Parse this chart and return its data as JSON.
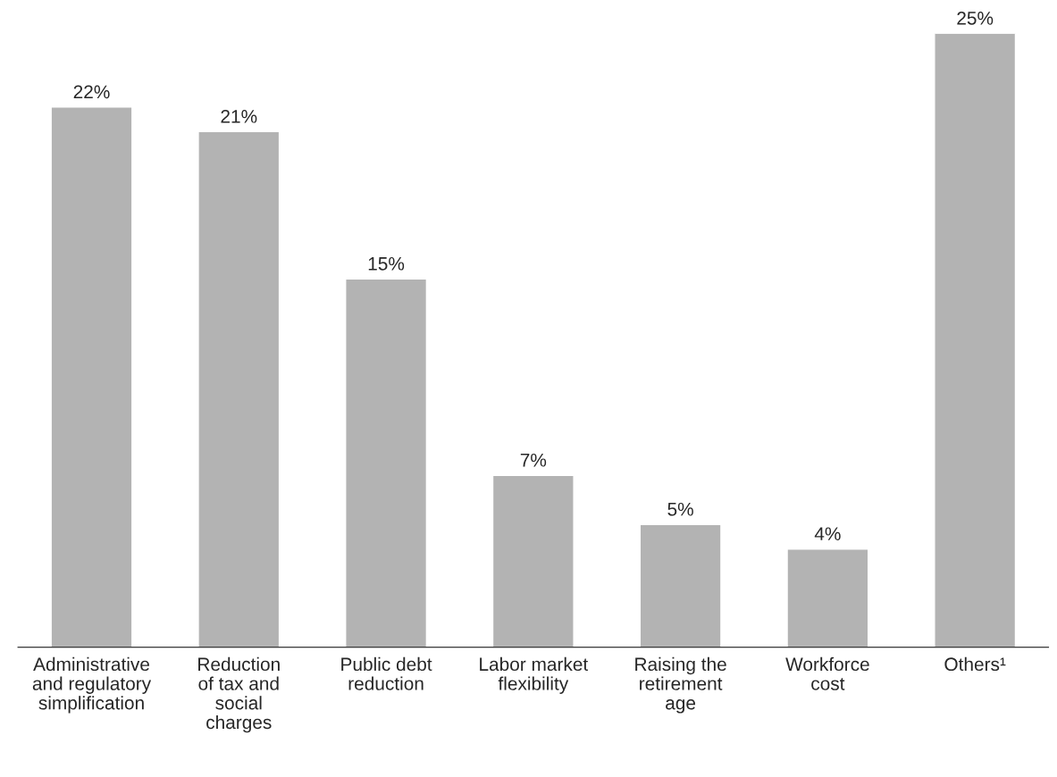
{
  "chart_data": {
    "type": "bar",
    "categories": [
      "Administrative\nand regulatory\nsimplification",
      "Reduction\nof tax and\nsocial\ncharges",
      "Public debt\nreduction",
      "Labor market\nflexibility",
      "Raising the\nretirement\nage",
      "Workforce\ncost",
      "Others¹"
    ],
    "values": [
      22,
      21,
      15,
      7,
      5,
      4,
      25
    ],
    "value_labels": [
      "22%",
      "21%",
      "15%",
      "7%",
      "5%",
      "4%",
      "25%"
    ],
    "color": "#b3b3b3",
    "grid": false,
    "legend": false
  }
}
